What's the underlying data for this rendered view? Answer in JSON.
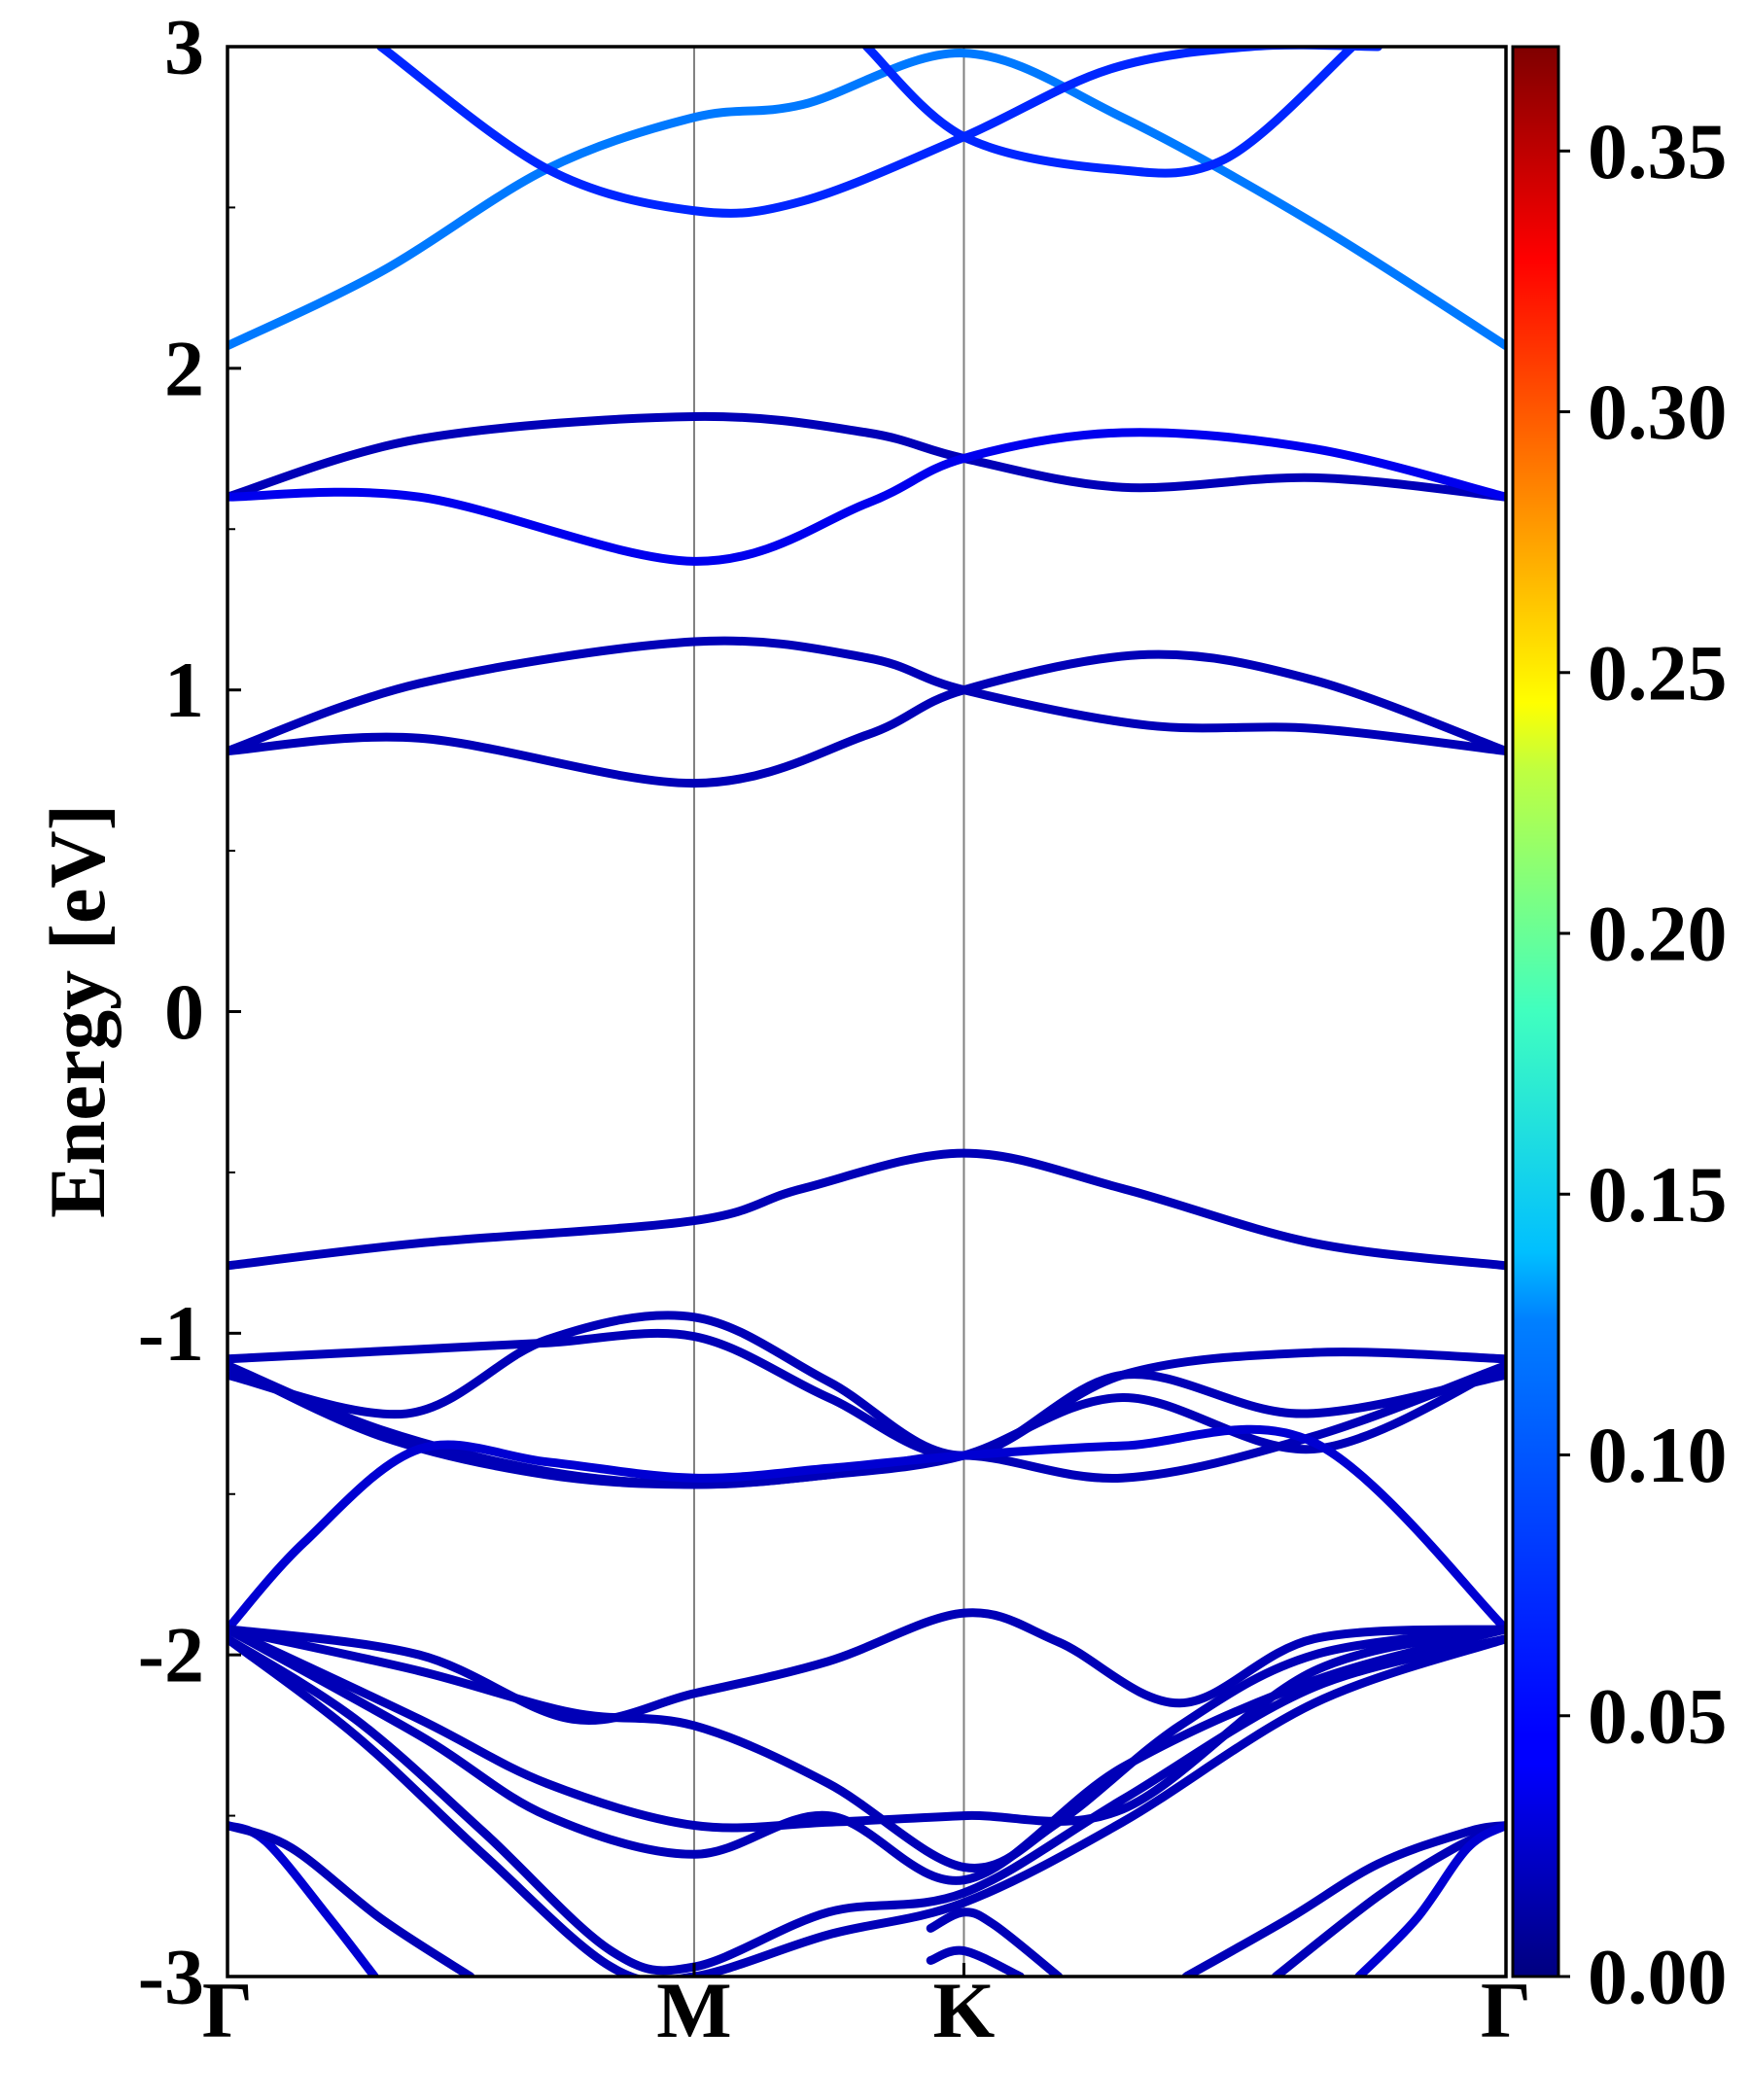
{
  "chart_data": {
    "type": "line",
    "title": "",
    "xlabel": "",
    "ylabel": "Energy [eV]",
    "ylim": [
      -3,
      3
    ],
    "xlim": [
      0,
      1
    ],
    "x_ticks": [
      {
        "label": "Γ",
        "value": 0.0
      },
      {
        "label": "M",
        "value": 0.365
      },
      {
        "label": "K",
        "value": 0.576
      },
      {
        "label": "Γ",
        "value": 1.0
      }
    ],
    "y_ticks": [
      "-3",
      "-2",
      "-1",
      "0",
      "1",
      "2",
      "3"
    ],
    "y_tick_values": [
      -3,
      -2,
      -1,
      0,
      1,
      2,
      3
    ],
    "colorbar": {
      "range": [
        0.0,
        0.37
      ],
      "colormap": "jet",
      "ticks": [
        "0.00",
        "0.05",
        "0.10",
        "0.15",
        "0.20",
        "0.25",
        "0.30",
        "0.35"
      ],
      "tick_values": [
        0.0,
        0.05,
        0.1,
        0.15,
        0.2,
        0.25,
        0.3,
        0.35
      ]
    },
    "grid": false,
    "legend": "none",
    "series": [
      {
        "x": [
          0,
          0.12,
          0.25,
          0.365,
          0.45,
          0.576,
          0.7,
          0.85,
          1.0
        ],
        "y": [
          2.07,
          2.3,
          2.62,
          2.78,
          2.82,
          2.98,
          2.78,
          2.45,
          2.07
        ],
        "c": 0.09
      },
      {
        "x": [
          0.12,
          0.25,
          0.365,
          0.45,
          0.576,
          0.69,
          0.8,
          0.9
        ],
        "y": [
          3.0,
          2.62,
          2.49,
          2.52,
          2.72,
          2.93,
          3.0,
          3.0
        ],
        "c": 0.06
      },
      {
        "x": [
          0.5,
          0.576,
          0.69,
          0.78,
          0.88
        ],
        "y": [
          3.0,
          2.72,
          2.62,
          2.65,
          3.0
        ],
        "c": 0.06
      },
      {
        "x": [
          0,
          0.15,
          0.365,
          0.5,
          0.576,
          0.7,
          0.85,
          1.0
        ],
        "y": [
          1.6,
          1.78,
          1.85,
          1.8,
          1.72,
          1.63,
          1.66,
          1.6
        ],
        "c": 0.02
      },
      {
        "x": [
          0,
          0.15,
          0.365,
          0.5,
          0.576,
          0.7,
          0.85,
          1.0
        ],
        "y": [
          1.6,
          1.6,
          1.4,
          1.58,
          1.72,
          1.8,
          1.75,
          1.6
        ],
        "c": 0.04
      },
      {
        "x": [
          0,
          0.15,
          0.365,
          0.5,
          0.576,
          0.72,
          0.85,
          1.0
        ],
        "y": [
          0.81,
          1.02,
          1.15,
          1.1,
          1.0,
          0.89,
          0.88,
          0.81
        ],
        "c": 0.02
      },
      {
        "x": [
          0,
          0.15,
          0.365,
          0.5,
          0.576,
          0.72,
          0.85,
          1.0
        ],
        "y": [
          0.81,
          0.85,
          0.71,
          0.86,
          1.0,
          1.11,
          1.03,
          0.81
        ],
        "c": 0.02
      },
      {
        "x": [
          0,
          0.15,
          0.365,
          0.45,
          0.576,
          0.7,
          0.85,
          1.0
        ],
        "y": [
          -0.79,
          -0.72,
          -0.65,
          -0.55,
          -0.44,
          -0.55,
          -0.72,
          -0.79
        ],
        "c": 0.02
      },
      {
        "x": [
          0,
          0.15,
          0.25,
          0.365,
          0.47,
          0.576,
          0.7,
          0.85,
          1.0
        ],
        "y": [
          -1.08,
          -1.05,
          -1.03,
          -1.01,
          -1.2,
          -1.38,
          -1.13,
          -1.06,
          -1.08
        ],
        "c": 0.02
      },
      {
        "x": [
          0,
          0.14,
          0.25,
          0.365,
          0.47,
          0.576,
          0.7,
          0.84,
          1.0
        ],
        "y": [
          -1.13,
          -1.25,
          -1.02,
          -0.95,
          -1.15,
          -1.38,
          -1.13,
          -1.25,
          -1.13
        ],
        "c": 0.02
      },
      {
        "x": [
          0,
          0.12,
          0.25,
          0.365,
          0.47,
          0.576,
          0.7,
          0.85,
          1.0
        ],
        "y": [
          -1.1,
          -1.3,
          -1.43,
          -1.47,
          -1.44,
          -1.38,
          -1.45,
          -1.32,
          -1.1
        ],
        "c": 0.02
      },
      {
        "x": [
          0,
          0.12,
          0.25,
          0.365,
          0.47,
          0.576,
          0.7,
          0.85,
          1.0
        ],
        "y": [
          -1.1,
          -1.32,
          -1.44,
          -1.47,
          -1.44,
          -1.38,
          -1.2,
          -1.36,
          -1.1
        ],
        "c": 0.02
      },
      {
        "x": [
          0,
          0.06,
          0.15,
          0.25,
          0.365,
          0.47,
          0.576,
          0.7,
          0.85,
          1.0
        ],
        "y": [
          -1.92,
          -1.65,
          -1.36,
          -1.4,
          -1.45,
          -1.42,
          -1.38,
          -1.35,
          -1.34,
          -1.92
        ],
        "c": 0.03
      },
      {
        "x": [
          0,
          0.15,
          0.27,
          0.365,
          0.47,
          0.576,
          0.65,
          0.745,
          0.85,
          1.0
        ],
        "y": [
          -1.92,
          -2.0,
          -2.2,
          -2.12,
          -2.02,
          -1.87,
          -1.96,
          -2.15,
          -1.95,
          -1.92
        ],
        "c": 0.02
      },
      {
        "x": [
          0,
          0.15,
          0.27,
          0.365,
          0.47,
          0.576,
          0.65,
          0.745,
          0.85,
          1.0
        ],
        "y": [
          -1.92,
          -2.05,
          -2.18,
          -2.22,
          -2.4,
          -2.66,
          -2.52,
          -2.22,
          -2.0,
          -1.92
        ],
        "c": 0.02
      },
      {
        "x": [
          0,
          0.15,
          0.25,
          0.365,
          0.47,
          0.576,
          0.7,
          0.85,
          1.0
        ],
        "y": [
          -1.92,
          -2.2,
          -2.4,
          -2.53,
          -2.52,
          -2.5,
          -2.48,
          -2.05,
          -1.92
        ],
        "c": 0.02
      },
      {
        "x": [
          0,
          0.15,
          0.25,
          0.365,
          0.47,
          0.576,
          0.7,
          0.85,
          1.0
        ],
        "y": [
          -1.92,
          -2.25,
          -2.5,
          -2.62,
          -2.5,
          -2.7,
          -2.35,
          -2.08,
          -1.92
        ],
        "c": 0.02
      },
      {
        "x": [
          0,
          0.1,
          0.2,
          0.3,
          0.365,
          0.47,
          0.576,
          0.7,
          0.85,
          1.0
        ],
        "y": [
          -1.95,
          -2.2,
          -2.55,
          -2.92,
          -2.97,
          -2.8,
          -2.74,
          -2.45,
          -2.1,
          -1.95
        ],
        "c": 0.02
      },
      {
        "x": [
          0,
          0.1,
          0.2,
          0.3,
          0.365,
          0.47,
          0.576,
          0.7,
          0.85,
          1.0
        ],
        "y": [
          -1.95,
          -2.25,
          -2.62,
          -2.97,
          -3.0,
          -2.87,
          -2.77,
          -2.52,
          -2.15,
          -1.95
        ],
        "c": 0.02
      },
      {
        "x": [
          0,
          0.03,
          0.08,
          0.115
        ],
        "y": [
          -2.53,
          -2.58,
          -2.82,
          -3.0
        ],
        "c": 0.03
      },
      {
        "x": [
          0,
          0.05,
          0.12,
          0.19
        ],
        "y": [
          -2.53,
          -2.6,
          -2.82,
          -3.0
        ],
        "c": 0.02
      },
      {
        "x": [
          0.55,
          0.576,
          0.6,
          0.65
        ],
        "y": [
          -2.85,
          -2.8,
          -2.84,
          -3.0
        ],
        "c": 0.02
      },
      {
        "x": [
          0.55,
          0.576,
          0.62
        ],
        "y": [
          -2.95,
          -2.92,
          -3.0
        ],
        "c": 0.02
      },
      {
        "x": [
          0.75,
          0.83,
          0.9,
          0.97,
          1.0
        ],
        "y": [
          -3.0,
          -2.82,
          -2.65,
          -2.55,
          -2.53
        ],
        "c": 0.02
      },
      {
        "x": [
          0.82,
          0.9,
          0.96,
          1.0
        ],
        "y": [
          -3.0,
          -2.75,
          -2.6,
          -2.53
        ],
        "c": 0.02
      },
      {
        "x": [
          0.885,
          0.93,
          0.97,
          1.0
        ],
        "y": [
          -3.0,
          -2.82,
          -2.6,
          -2.53
        ],
        "c": 0.03
      }
    ]
  }
}
